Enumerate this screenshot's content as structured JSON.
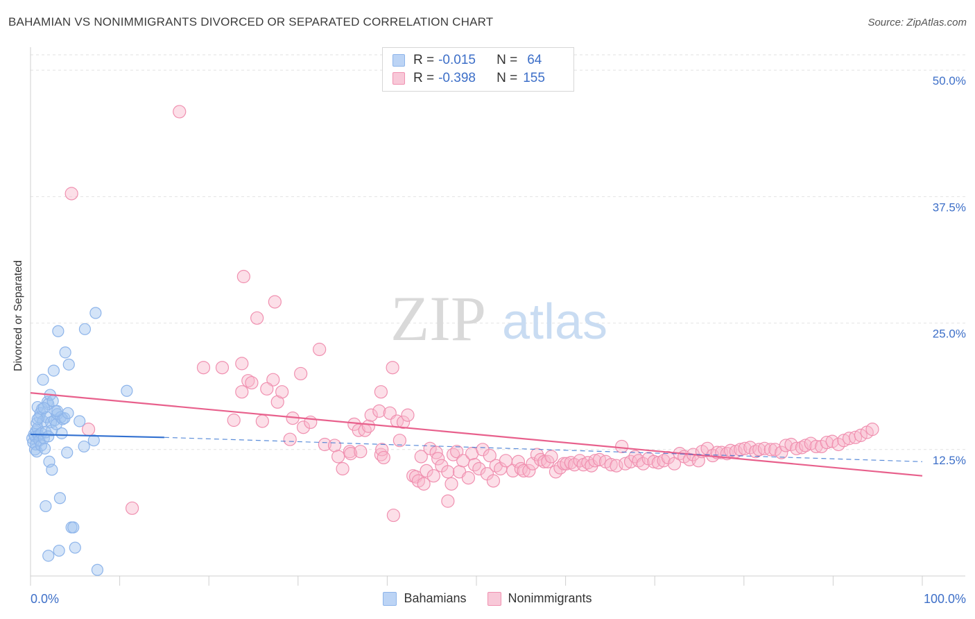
{
  "title": "BAHAMIAN VS NONIMMIGRANTS DIVORCED OR SEPARATED CORRELATION CHART",
  "source": "Source: ZipAtlas.com",
  "watermark": {
    "zip": "ZIP",
    "atlas": "atlas"
  },
  "legend_top": [
    {
      "r_label": "R =",
      "r_value": "-0.015",
      "n_label": "N =",
      "n_value": "64",
      "color": "#8db4ea",
      "fill": "#bcd4f5"
    },
    {
      "r_label": "R =",
      "r_value": "-0.398",
      "n_label": "N =",
      "n_value": "155",
      "color": "#f090b0",
      "fill": "#f8c8d8"
    }
  ],
  "colors": {
    "blue_point": "#8db4ea",
    "blue_fill": "rgba(160,195,240,0.45)",
    "blue_line": "#3170d0",
    "pink_point": "#f090b0",
    "pink_fill": "rgba(248,185,205,0.45)",
    "pink_line": "#e8608c",
    "axis_label": "#3d6fc8",
    "grid": "#e2e2e2"
  },
  "chart_data": {
    "type": "scatter",
    "title": "BAHAMIAN VS NONIMMIGRANTS DIVORCED OR SEPARATED CORRELATION CHART",
    "xlabel": "",
    "ylabel": "Divorced or Separated",
    "xlim": [
      0,
      100
    ],
    "ylim": [
      0,
      52
    ],
    "x_tick_labels": [
      "0.0%",
      "100.0%"
    ],
    "y_ticks": [
      12.5,
      25.0,
      37.5,
      50.0
    ],
    "y_tick_labels": [
      "12.5%",
      "25.0%",
      "37.5%",
      "50.0%"
    ],
    "grid": true,
    "legend_position": "bottom",
    "series": [
      {
        "name": "Bahamians",
        "r": -0.015,
        "n": 64,
        "trend": {
          "x1": 0,
          "y1": 14.0,
          "x2": 15,
          "y2": 13.7,
          "dash_to_x": 100,
          "dash_to_y": 11.3
        },
        "points": [
          [
            0.2,
            13.6
          ],
          [
            0.3,
            13.2
          ],
          [
            0.4,
            14.0
          ],
          [
            0.5,
            12.5
          ],
          [
            0.5,
            13.8
          ],
          [
            0.6,
            14.3
          ],
          [
            0.6,
            13.0
          ],
          [
            0.7,
            15.1
          ],
          [
            0.7,
            12.3
          ],
          [
            0.8,
            14.6
          ],
          [
            0.8,
            16.7
          ],
          [
            0.9,
            13.9
          ],
          [
            1.0,
            15.7
          ],
          [
            1.0,
            13.4
          ],
          [
            1.1,
            16.1
          ],
          [
            1.2,
            14.1
          ],
          [
            1.2,
            12.9
          ],
          [
            1.3,
            16.5
          ],
          [
            1.4,
            15.3
          ],
          [
            1.4,
            19.4
          ],
          [
            1.5,
            13.6
          ],
          [
            1.6,
            12.6
          ],
          [
            1.7,
            14.2
          ],
          [
            1.7,
            6.9
          ],
          [
            1.8,
            15.7
          ],
          [
            1.9,
            17.2
          ],
          [
            2.0,
            17.0
          ],
          [
            2.0,
            2.0
          ],
          [
            2.1,
            11.3
          ],
          [
            2.2,
            17.9
          ],
          [
            2.3,
            15.2
          ],
          [
            2.4,
            14.4
          ],
          [
            2.4,
            10.5
          ],
          [
            2.5,
            17.3
          ],
          [
            2.6,
            20.3
          ],
          [
            2.7,
            15.4
          ],
          [
            2.8,
            16.3
          ],
          [
            2.9,
            15.0
          ],
          [
            3.0,
            16.0
          ],
          [
            3.2,
            2.5
          ],
          [
            3.1,
            24.2
          ],
          [
            3.3,
            7.7
          ],
          [
            3.4,
            15.7
          ],
          [
            3.5,
            14.1
          ],
          [
            3.6,
            15.5
          ],
          [
            3.8,
            15.6
          ],
          [
            3.9,
            22.1
          ],
          [
            4.1,
            12.2
          ],
          [
            4.3,
            20.9
          ],
          [
            4.2,
            16.1
          ],
          [
            4.6,
            4.8
          ],
          [
            4.8,
            4.8
          ],
          [
            5.0,
            2.8
          ],
          [
            5.5,
            15.3
          ],
          [
            6.0,
            12.8
          ],
          [
            6.1,
            24.4
          ],
          [
            7.1,
            13.4
          ],
          [
            7.3,
            26.0
          ],
          [
            7.5,
            0.6
          ],
          [
            10.8,
            18.3
          ],
          [
            3.0,
            16.3
          ],
          [
            2.0,
            13.8
          ],
          [
            1.5,
            16.6
          ],
          [
            0.8,
            15.5
          ]
        ]
      },
      {
        "name": "Nonimmigrants",
        "r": -0.398,
        "n": 155,
        "trend": {
          "x1": 0,
          "y1": 18.1,
          "x2": 100,
          "y2": 9.9
        },
        "points": [
          [
            4.6,
            37.8
          ],
          [
            16.7,
            45.9
          ],
          [
            6.5,
            14.5
          ],
          [
            11.4,
            6.7
          ],
          [
            19.4,
            20.6
          ],
          [
            21.5,
            20.6
          ],
          [
            22.8,
            15.4
          ],
          [
            23.7,
            21.0
          ],
          [
            23.7,
            18.2
          ],
          [
            23.9,
            29.6
          ],
          [
            24.4,
            19.3
          ],
          [
            24.8,
            19.1
          ],
          [
            25.4,
            25.5
          ],
          [
            26.0,
            15.3
          ],
          [
            27.2,
            19.4
          ],
          [
            26.5,
            18.5
          ],
          [
            27.7,
            17.2
          ],
          [
            27.4,
            27.1
          ],
          [
            28.2,
            18.2
          ],
          [
            29.1,
            13.5
          ],
          [
            29.4,
            15.6
          ],
          [
            30.3,
            20.0
          ],
          [
            30.6,
            14.7
          ],
          [
            31.4,
            15.2
          ],
          [
            32.4,
            22.4
          ],
          [
            33.0,
            13.0
          ],
          [
            34.1,
            12.9
          ],
          [
            34.5,
            11.8
          ],
          [
            35.0,
            10.6
          ],
          [
            35.8,
            12.3
          ],
          [
            35.9,
            12.1
          ],
          [
            36.3,
            15.0
          ],
          [
            36.8,
            14.4
          ],
          [
            37.0,
            12.3
          ],
          [
            37.5,
            14.4
          ],
          [
            37.9,
            14.8
          ],
          [
            38.2,
            15.9
          ],
          [
            39.1,
            16.3
          ],
          [
            39.3,
            12.0
          ],
          [
            39.3,
            18.2
          ],
          [
            39.4,
            12.5
          ],
          [
            39.6,
            11.7
          ],
          [
            40.6,
            20.6
          ],
          [
            40.3,
            16.1
          ],
          [
            40.7,
            6.0
          ],
          [
            41.1,
            15.3
          ],
          [
            41.4,
            13.4
          ],
          [
            41.8,
            15.2
          ],
          [
            42.3,
            15.9
          ],
          [
            42.9,
            9.9
          ],
          [
            43.2,
            9.8
          ],
          [
            43.5,
            9.4
          ],
          [
            43.8,
            11.8
          ],
          [
            44.1,
            9.1
          ],
          [
            44.4,
            10.4
          ],
          [
            44.8,
            12.6
          ],
          [
            45.2,
            9.9
          ],
          [
            45.5,
            12.2
          ],
          [
            45.7,
            11.6
          ],
          [
            46.1,
            10.9
          ],
          [
            46.8,
            10.3
          ],
          [
            46.8,
            7.4
          ],
          [
            47.2,
            9.1
          ],
          [
            47.4,
            12.0
          ],
          [
            47.8,
            12.3
          ],
          [
            48.1,
            10.3
          ],
          [
            48.5,
            11.4
          ],
          [
            49.1,
            9.7
          ],
          [
            49.5,
            12.1
          ],
          [
            49.8,
            11.0
          ],
          [
            50.3,
            10.6
          ],
          [
            50.7,
            12.5
          ],
          [
            51.2,
            10.1
          ],
          [
            51.5,
            11.9
          ],
          [
            51.9,
            9.4
          ],
          [
            52.2,
            10.9
          ],
          [
            52.7,
            10.6
          ],
          [
            53.3,
            11.4
          ],
          [
            54.1,
            10.4
          ],
          [
            54.7,
            11.3
          ],
          [
            55.0,
            10.6
          ],
          [
            55.3,
            10.4
          ],
          [
            55.9,
            10.4
          ],
          [
            56.3,
            11.1
          ],
          [
            56.8,
            12.0
          ],
          [
            57.2,
            11.5
          ],
          [
            57.6,
            11.3
          ],
          [
            58.0,
            11.3
          ],
          [
            58.4,
            11.8
          ],
          [
            58.9,
            10.3
          ],
          [
            59.4,
            10.7
          ],
          [
            59.8,
            11.1
          ],
          [
            60.1,
            11.1
          ],
          [
            60.6,
            11.2
          ],
          [
            61.0,
            11.0
          ],
          [
            61.6,
            11.4
          ],
          [
            62.0,
            11.0
          ],
          [
            62.5,
            11.2
          ],
          [
            62.9,
            10.9
          ],
          [
            63.3,
            11.4
          ],
          [
            63.8,
            11.5
          ],
          [
            64.5,
            11.3
          ],
          [
            65.1,
            11.0
          ],
          [
            65.7,
            10.9
          ],
          [
            66.3,
            12.8
          ],
          [
            66.7,
            11.1
          ],
          [
            67.3,
            11.3
          ],
          [
            67.8,
            11.8
          ],
          [
            68.2,
            11.4
          ],
          [
            68.7,
            11.1
          ],
          [
            69.3,
            11.6
          ],
          [
            69.9,
            11.3
          ],
          [
            70.4,
            11.2
          ],
          [
            71.0,
            11.4
          ],
          [
            71.5,
            11.7
          ],
          [
            72.2,
            11.1
          ],
          [
            72.8,
            12.1
          ],
          [
            73.3,
            11.8
          ],
          [
            73.9,
            11.5
          ],
          [
            74.3,
            12.0
          ],
          [
            74.9,
            11.4
          ],
          [
            75.3,
            12.3
          ],
          [
            75.9,
            12.6
          ],
          [
            76.5,
            11.9
          ],
          [
            77.0,
            12.2
          ],
          [
            77.5,
            12.2
          ],
          [
            78.1,
            12.1
          ],
          [
            78.5,
            12.4
          ],
          [
            79.1,
            12.3
          ],
          [
            79.6,
            12.5
          ],
          [
            80.1,
            12.6
          ],
          [
            80.7,
            12.7
          ],
          [
            81.3,
            12.3
          ],
          [
            81.7,
            12.5
          ],
          [
            82.3,
            12.6
          ],
          [
            83.0,
            12.5
          ],
          [
            83.5,
            12.5
          ],
          [
            84.2,
            12.2
          ],
          [
            84.7,
            12.9
          ],
          [
            85.3,
            13.0
          ],
          [
            85.9,
            12.6
          ],
          [
            86.5,
            12.7
          ],
          [
            86.9,
            12.9
          ],
          [
            87.5,
            13.1
          ],
          [
            88.1,
            12.8
          ],
          [
            88.7,
            12.8
          ],
          [
            89.3,
            13.2
          ],
          [
            89.9,
            13.3
          ],
          [
            90.6,
            13.0
          ],
          [
            91.2,
            13.4
          ],
          [
            91.8,
            13.6
          ],
          [
            92.5,
            13.7
          ],
          [
            93.1,
            13.9
          ],
          [
            93.8,
            14.2
          ],
          [
            94.4,
            14.5
          ]
        ]
      }
    ]
  }
}
